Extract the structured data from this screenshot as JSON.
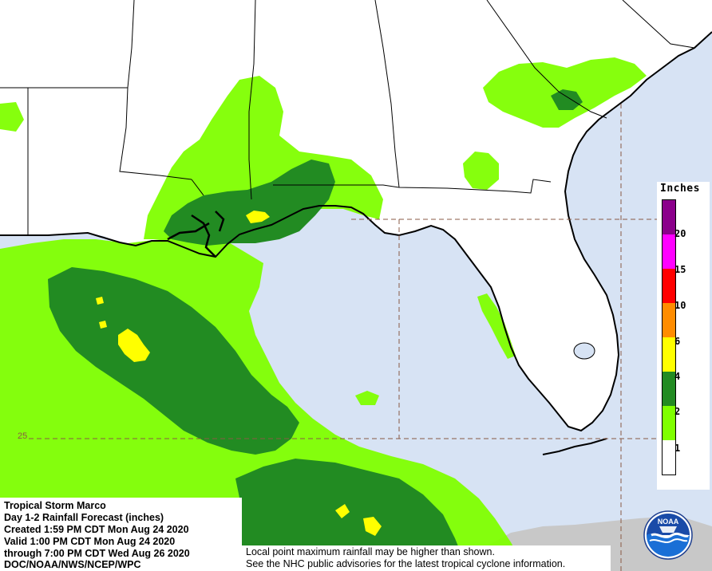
{
  "map": {
    "latitude_label": "25",
    "colors": {
      "ocean": "#d7e3f4",
      "land": "#ffffff",
      "lightgreen": "#7fff00",
      "darkgreen": "#228b22",
      "yellow": "#ffff00",
      "boundary": "#000000",
      "gridline": "#8a5a44",
      "shade": "#c8c8c8"
    }
  },
  "legend": {
    "title": "Inches",
    "levels": [
      {
        "label": "20",
        "color": "#8b008b"
      },
      {
        "label": "15",
        "color": "#ff00ff"
      },
      {
        "label": "10",
        "color": "#ff0000"
      },
      {
        "label": "6",
        "color": "#ff8c00"
      },
      {
        "label": "4",
        "color": "#ffff00"
      },
      {
        "label": "2",
        "color": "#228b22"
      },
      {
        "label": "1",
        "color": "#7fff00"
      },
      {
        "label": "",
        "color": "#ffffff"
      }
    ]
  },
  "info": {
    "storm": "Tropical Storm Marco",
    "product": "Day 1-2 Rainfall Forecast (inches)",
    "created": "Created 1:59 PM CDT Mon Aug 24 2020",
    "valid": "Valid 1:00 PM CDT Mon Aug 24 2020",
    "through": "through 7:00 PM CDT Wed Aug 26 2020",
    "agency": "DOC/NOAA/NWS/NCEP/WPC"
  },
  "disclaimer": {
    "line1": "Local point maximum rainfall may be higher than shown.",
    "line2": "See the NHC public advisories for the latest tropical cyclone information."
  },
  "logo": {
    "text": "NOAA"
  }
}
